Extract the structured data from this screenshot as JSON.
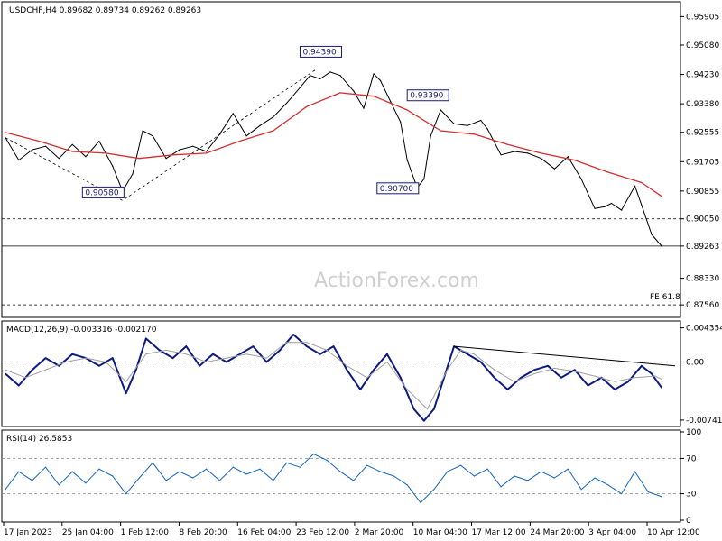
{
  "header": {
    "symbol": "USDCHF,H4",
    "ohlc": "0.89682 0.89734 0.89262 0.89263"
  },
  "watermark": "ActionForex.com",
  "colors": {
    "price": "#000000",
    "ma": "#d32f2f",
    "macd": "#0d1a80",
    "signal": "#a0a0a0",
    "rsi": "#1565c0",
    "annotation_border": "#1a1a6e",
    "trendline": "#000000"
  },
  "chart_data": [
    {
      "type": "line",
      "panel": "price",
      "title": "USDCHF,H4 0.89682 0.89734 0.89262 0.89263",
      "ylim": [
        0.8725,
        0.9628
      ],
      "y_ticks": [
        "0.95905",
        "0.95080",
        "0.94230",
        "0.93380",
        "0.92555",
        "0.91705",
        "0.90855",
        "0.90050",
        "0.89263",
        "0.88330",
        "0.87560"
      ],
      "x_ticks": [
        "17 Jan 2023",
        "25 Jan 04:00",
        "1 Feb 12:00",
        "8 Feb 20:00",
        "16 Feb 04:00",
        "23 Feb 12:00",
        "2 Mar 20:00",
        "10 Mar 04:00",
        "17 Mar 12:00",
        "24 Mar 20:00",
        "3 Apr 04:00",
        "10 Apr 12:00"
      ],
      "x_range": [
        0,
        100
      ],
      "series": [
        {
          "name": "",
          "x": [
            0,
            2,
            4,
            6,
            8,
            10,
            12,
            14,
            16,
            17.5,
            19,
            20.5,
            22,
            24,
            26,
            28,
            30,
            32,
            34,
            36,
            38,
            40,
            42,
            44,
            45.5,
            47,
            48.5,
            50,
            52,
            53.5,
            55,
            56,
            57.5,
            59,
            60,
            61.5,
            62.5,
            63.5,
            65,
            67,
            69,
            71,
            72,
            74,
            76,
            78,
            80,
            82,
            84,
            86,
            88,
            89.5,
            90.5,
            92,
            94,
            95,
            96.5,
            98
          ],
          "values": [
            0.924,
            0.9175,
            0.9205,
            0.9215,
            0.918,
            0.922,
            0.9185,
            0.923,
            0.9158,
            0.9085,
            0.9135,
            0.926,
            0.9245,
            0.918,
            0.9205,
            0.9215,
            0.92,
            0.925,
            0.931,
            0.9245,
            0.9275,
            0.93,
            0.934,
            0.9385,
            0.942,
            0.941,
            0.943,
            0.942,
            0.9375,
            0.9325,
            0.9425,
            0.9405,
            0.9345,
            0.9285,
            0.9175,
            0.9095,
            0.912,
            0.9245,
            0.932,
            0.928,
            0.9275,
            0.929,
            0.9265,
            0.919,
            0.92,
            0.9195,
            0.918,
            0.915,
            0.9185,
            0.912,
            0.9035,
            0.904,
            0.905,
            0.903,
            0.91,
            0.9045,
            0.896,
            0.8926
          ]
        },
        {
          "name": "",
          "x": [
            0,
            5,
            10,
            15,
            20,
            25,
            30,
            35,
            40,
            45,
            50,
            55,
            60,
            65,
            70,
            75,
            80,
            85,
            90,
            95,
            98
          ],
          "values": [
            0.9255,
            0.923,
            0.92,
            0.9195,
            0.918,
            0.919,
            0.9195,
            0.923,
            0.926,
            0.933,
            0.937,
            0.936,
            0.932,
            0.926,
            0.925,
            0.922,
            0.9195,
            0.9175,
            0.914,
            0.911,
            0.907
          ]
        }
      ],
      "annotations": [
        {
          "label": "0.94390"
        },
        {
          "label": "0.93390"
        },
        {
          "label": "0.90580"
        },
        {
          "label": "0.90700"
        },
        {
          "label": "0.90050"
        },
        {
          "label": "0.89263"
        },
        {
          "label": "FE 61.8"
        },
        {
          "label": "0.87560"
        }
      ]
    },
    {
      "type": "line",
      "panel": "macd",
      "title": "MACD(12,26,9) -0.003316 -0.002170",
      "ylim": [
        -0.008,
        0.005
      ],
      "y_ticks": [
        "0.004354",
        "0.00",
        "-0.007417"
      ],
      "series": [
        {
          "name": "",
          "x": [
            0,
            2,
            4,
            6,
            8,
            10,
            12,
            14,
            16,
            18,
            19.5,
            21,
            23,
            25,
            27,
            29,
            31,
            33,
            35,
            37,
            39,
            41,
            43,
            45,
            47,
            49,
            51,
            53,
            55,
            57,
            59,
            61,
            62.5,
            64,
            65.5,
            67,
            69,
            71,
            73,
            75,
            77,
            79,
            81,
            83,
            85,
            87,
            89,
            91,
            93,
            95,
            96.5,
            98
          ],
          "values": [
            -0.0015,
            -0.003,
            -0.001,
            0.0005,
            -0.0005,
            0.001,
            0.0005,
            -0.0005,
            0.0005,
            -0.004,
            -0.001,
            0.003,
            0.0015,
            0.0005,
            0.002,
            -0.0005,
            0.001,
            0.0,
            0.001,
            0.002,
            0.0,
            0.0015,
            0.0035,
            0.002,
            0.001,
            0.002,
            -0.001,
            -0.0035,
            -0.001,
            0.001,
            -0.002,
            -0.006,
            -0.0075,
            -0.006,
            -0.002,
            0.002,
            0.001,
            0.0,
            -0.002,
            -0.0035,
            -0.002,
            -0.001,
            -0.0005,
            -0.002,
            -0.001,
            -0.003,
            -0.002,
            -0.0035,
            -0.0025,
            -0.0005,
            -0.0015,
            -0.0033
          ]
        },
        {
          "name": "",
          "x": [
            0,
            3,
            6,
            9,
            12,
            15,
            18,
            21,
            24,
            27,
            30,
            33,
            36,
            39,
            42,
            45,
            48,
            51,
            54,
            57,
            60,
            63,
            66,
            68,
            70,
            73,
            76,
            79,
            82,
            85,
            88,
            91,
            94,
            97,
            98
          ],
          "values": [
            -0.001,
            -0.002,
            -0.001,
            0.0,
            0.0005,
            0.0,
            -0.0025,
            0.001,
            0.0015,
            0.001,
            0.0,
            0.0005,
            0.001,
            0.0005,
            0.0025,
            0.0025,
            0.0015,
            -0.0005,
            -0.002,
            0.0,
            -0.0035,
            -0.006,
            -0.001,
            0.0015,
            0.001,
            -0.001,
            -0.0025,
            -0.0015,
            -0.0008,
            -0.0012,
            -0.0018,
            -0.0025,
            -0.002,
            -0.0018,
            -0.0022
          ]
        }
      ]
    },
    {
      "type": "line",
      "panel": "rsi",
      "title": "RSI(14) 26.5853",
      "ylim": [
        0,
        100
      ],
      "y_ticks": [
        "100",
        "70",
        "30",
        "0"
      ],
      "series": [
        {
          "name": "",
          "x": [
            0,
            2,
            4,
            6,
            8,
            10,
            12,
            14,
            16,
            18,
            20,
            22,
            24,
            26,
            28,
            30,
            32,
            34,
            36,
            38,
            40,
            42,
            44,
            46,
            48,
            50,
            52,
            54,
            56,
            58,
            60,
            62,
            64,
            66,
            68,
            70,
            72,
            74,
            76,
            78,
            80,
            82,
            84,
            86,
            88,
            90,
            92,
            94,
            96,
            98
          ],
          "values": [
            35,
            55,
            45,
            60,
            40,
            55,
            42,
            58,
            50,
            30,
            48,
            65,
            45,
            55,
            48,
            58,
            45,
            60,
            52,
            58,
            45,
            65,
            60,
            75,
            68,
            55,
            45,
            62,
            55,
            50,
            40,
            20,
            35,
            55,
            62,
            50,
            58,
            38,
            50,
            45,
            55,
            48,
            58,
            35,
            48,
            40,
            30,
            55,
            32,
            26.6
          ]
        }
      ]
    }
  ]
}
